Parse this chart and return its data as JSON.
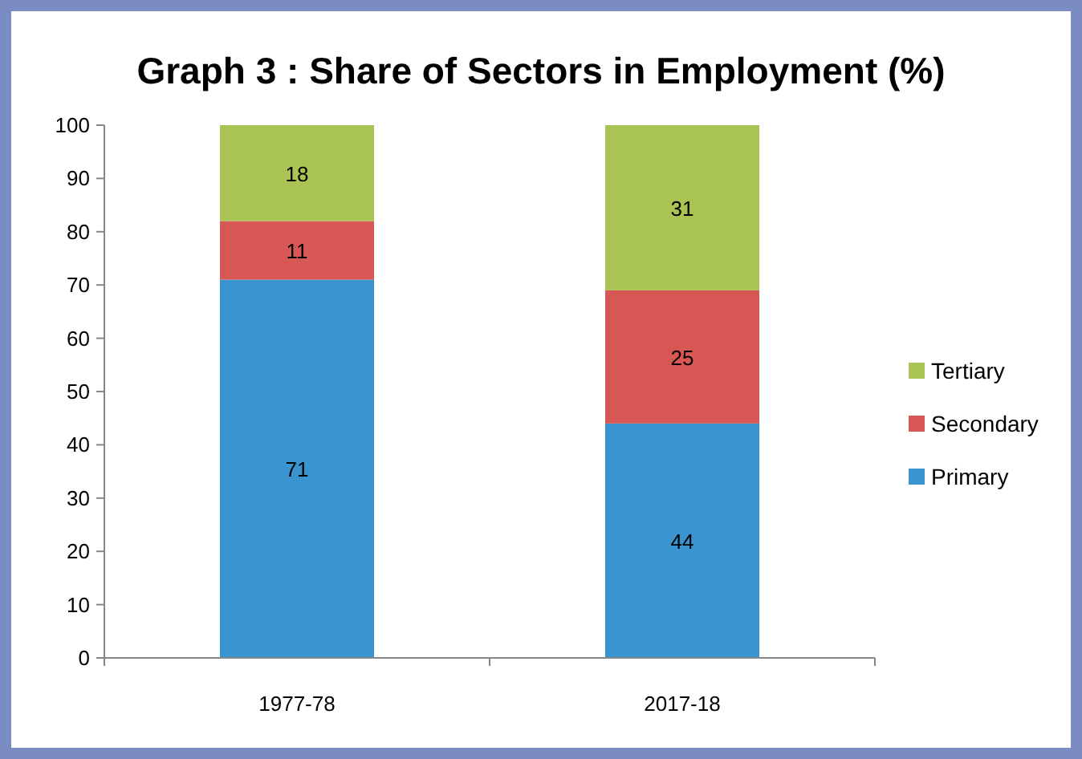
{
  "chart_data": {
    "type": "bar",
    "title": "Graph 3 : Share of Sectors in Employment (%)",
    "categories": [
      "1977-78",
      "2017-18"
    ],
    "stacked": true,
    "data_labels": true,
    "legend": "right",
    "ylim": [
      0,
      100
    ],
    "yticks": [
      0,
      10,
      20,
      30,
      40,
      50,
      60,
      70,
      80,
      90,
      100
    ],
    "series": [
      {
        "name": "Primary",
        "color": "#3a94cf",
        "values": [
          71,
          44
        ]
      },
      {
        "name": "Secondary",
        "color": "#d65753",
        "values": [
          11,
          25
        ]
      },
      {
        "name": "Tertiary",
        "color": "#a9c452",
        "values": [
          18,
          31
        ]
      }
    ]
  }
}
